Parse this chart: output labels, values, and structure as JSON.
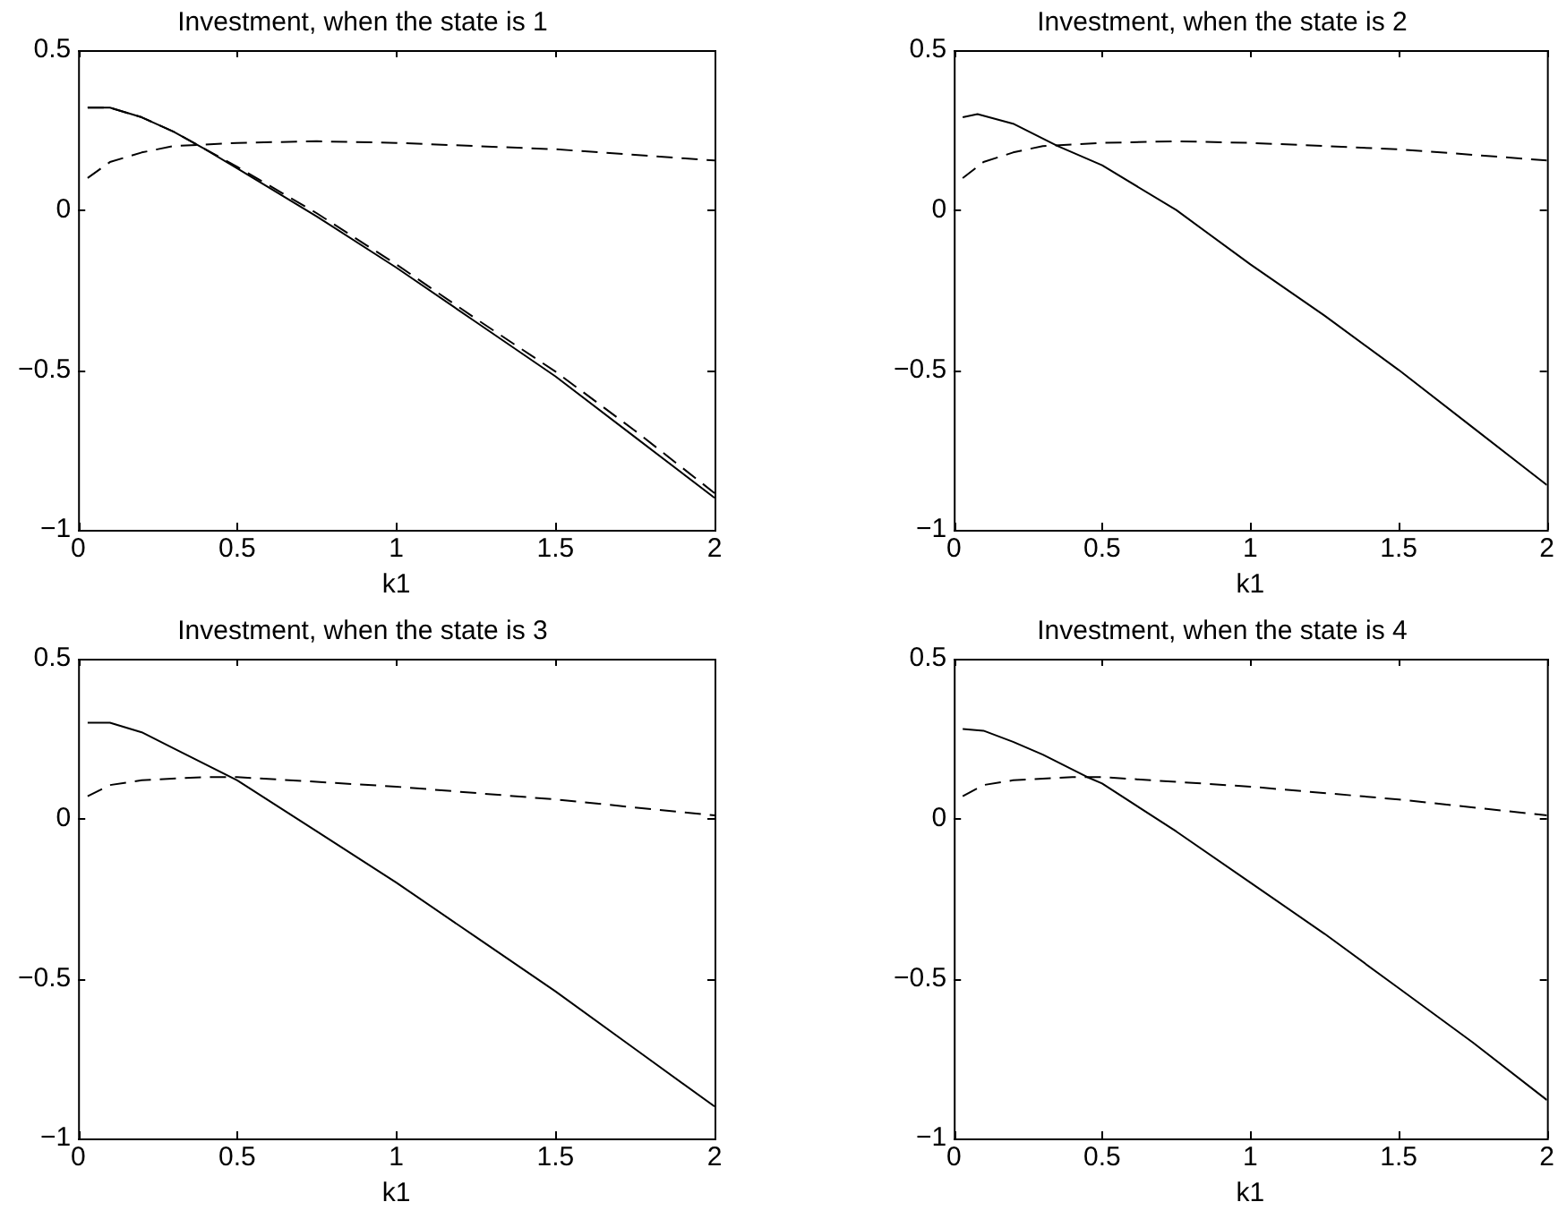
{
  "chart_data": [
    {
      "type": "line",
      "title": "Investment, when the state is 1",
      "xlabel": "k1",
      "xlim": [
        0,
        2
      ],
      "xticks": [
        0,
        0.5,
        1,
        1.5,
        2
      ],
      "ylim": [
        -1,
        0.5
      ],
      "yticks": [
        -1,
        -0.5,
        0,
        0.5
      ],
      "series": [
        {
          "color": "#000000",
          "line_style": "solid",
          "x": [
            0.03,
            0.1,
            0.2,
            0.3,
            0.4,
            0.5,
            0.75,
            1,
            1.25,
            1.5,
            1.75,
            2
          ],
          "values": [
            0.32,
            0.32,
            0.29,
            0.245,
            0.19,
            0.13,
            -0.02,
            -0.18,
            -0.35,
            -0.52,
            -0.71,
            -0.9
          ]
        },
        {
          "color": "#000000",
          "line_style": "dashed",
          "x": [
            0.03,
            0.1,
            0.2,
            0.3,
            0.4,
            0.5,
            0.75,
            1,
            1.25,
            1.5,
            1.75,
            2
          ],
          "values": [
            0.32,
            0.32,
            0.29,
            0.245,
            0.19,
            0.135,
            -0.01,
            -0.17,
            -0.34,
            -0.505,
            -0.69,
            -0.885
          ]
        },
        {
          "color": "#000000",
          "line_style": "dashed",
          "x": [
            0.03,
            0.1,
            0.2,
            0.3,
            0.5,
            0.75,
            1,
            1.5,
            2
          ],
          "values": [
            0.1,
            0.15,
            0.18,
            0.2,
            0.21,
            0.215,
            0.21,
            0.19,
            0.155
          ]
        }
      ]
    },
    {
      "type": "line",
      "title": "Investment, when the state is 2",
      "xlabel": "k1",
      "xlim": [
        0,
        2
      ],
      "xticks": [
        0,
        0.5,
        1,
        1.5,
        2
      ],
      "ylim": [
        -1,
        0.5
      ],
      "yticks": [
        -1,
        -0.5,
        0,
        0.5
      ],
      "series": [
        {
          "color": "#000000",
          "line_style": "solid",
          "x": [
            0.03,
            0.08,
            0.2,
            0.35,
            0.5,
            0.75,
            1,
            1.25,
            1.5,
            1.75,
            2
          ],
          "values": [
            0.29,
            0.3,
            0.27,
            0.2,
            0.14,
            0.0,
            -0.17,
            -0.33,
            -0.5,
            -0.68,
            -0.86
          ]
        },
        {
          "color": "#000000",
          "line_style": "dashed",
          "x": [
            0.03,
            0.1,
            0.2,
            0.3,
            0.5,
            0.75,
            1,
            1.5,
            2
          ],
          "values": [
            0.1,
            0.15,
            0.18,
            0.2,
            0.21,
            0.215,
            0.21,
            0.19,
            0.155
          ]
        }
      ]
    },
    {
      "type": "line",
      "title": "Investment, when the state is 3",
      "xlabel": "k1",
      "xlim": [
        0,
        2
      ],
      "xticks": [
        0,
        0.5,
        1,
        1.5,
        2
      ],
      "ylim": [
        -1,
        0.5
      ],
      "yticks": [
        -1,
        -0.5,
        0,
        0.5
      ],
      "series": [
        {
          "color": "#000000",
          "line_style": "solid",
          "x": [
            0.03,
            0.1,
            0.2,
            0.3,
            0.5,
            0.75,
            1,
            1.25,
            1.5,
            1.75,
            2
          ],
          "values": [
            0.3,
            0.3,
            0.27,
            0.22,
            0.12,
            -0.04,
            -0.2,
            -0.37,
            -0.54,
            -0.72,
            -0.9
          ]
        },
        {
          "color": "#000000",
          "line_style": "dashed",
          "x": [
            0.03,
            0.1,
            0.2,
            0.4,
            0.5,
            1,
            1.5,
            2
          ],
          "values": [
            0.07,
            0.105,
            0.12,
            0.13,
            0.13,
            0.1,
            0.06,
            0.01
          ]
        }
      ]
    },
    {
      "type": "line",
      "title": "Investment, when the state is 4",
      "xlabel": "k1",
      "xlim": [
        0,
        2
      ],
      "xticks": [
        0,
        0.5,
        1,
        1.5,
        2
      ],
      "ylim": [
        -1,
        0.5
      ],
      "yticks": [
        -1,
        -0.5,
        0,
        0.5
      ],
      "series": [
        {
          "color": "#000000",
          "line_style": "solid",
          "x": [
            0.03,
            0.1,
            0.2,
            0.3,
            0.45,
            0.5,
            0.75,
            1,
            1.25,
            1.5,
            1.75,
            2
          ],
          "values": [
            0.28,
            0.275,
            0.24,
            0.2,
            0.13,
            0.11,
            -0.04,
            -0.2,
            -0.36,
            -0.53,
            -0.7,
            -0.88
          ]
        },
        {
          "color": "#000000",
          "line_style": "dashed",
          "x": [
            0.03,
            0.1,
            0.2,
            0.4,
            0.5,
            1,
            1.5,
            2
          ],
          "values": [
            0.07,
            0.105,
            0.12,
            0.13,
            0.13,
            0.1,
            0.06,
            0.01
          ]
        }
      ]
    }
  ]
}
